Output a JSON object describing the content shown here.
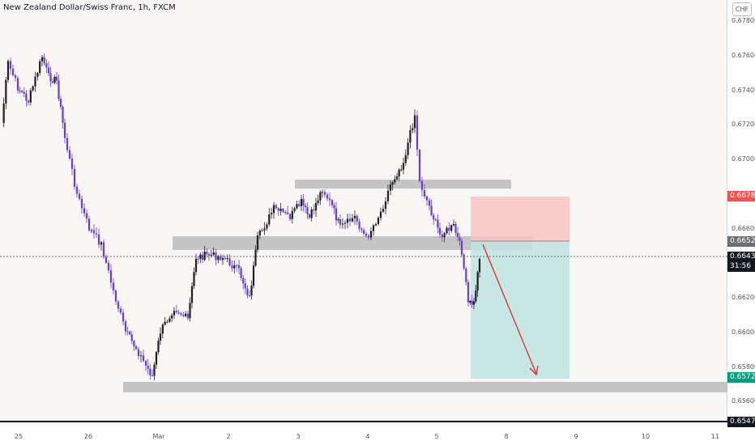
{
  "header": {
    "title": "New Zealand Dollar/Swiss Franc, 1h, FXCM",
    "currency": "CHF"
  },
  "price_axis": {
    "ticks": [
      "0.67800",
      "0.67600",
      "0.67400",
      "0.67200",
      "0.67000",
      "0.66600",
      "0.66200",
      "0.66000",
      "0.65800",
      "0.65600"
    ]
  },
  "price_tags": {
    "stop": "0.66780",
    "entry": "0.66523",
    "current": "0.66435",
    "countdown": "31:56",
    "target": "0.65727",
    "low": "0.65470"
  },
  "time_axis": {
    "ticks": [
      "25",
      "26",
      "Mar",
      "2",
      "3",
      "4",
      "5",
      "8",
      "9",
      "10",
      "11"
    ]
  },
  "colors": {
    "candle": "#6a3fc8",
    "zone": "#b0b0b0",
    "stop_zone": "#f7c4c3",
    "target_zone": "#bfe3df",
    "arrow": "#d32f2f"
  }
}
